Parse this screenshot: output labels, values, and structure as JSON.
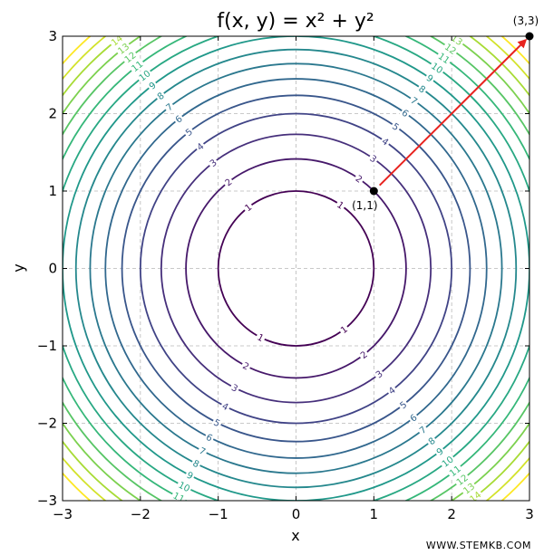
{
  "chart_data": {
    "type": "contour",
    "title": "f(x, y) = x² + y²",
    "xlabel": "x",
    "ylabel": "y",
    "xlim": [
      -3,
      3
    ],
    "ylim": [
      -3,
      3
    ],
    "x_ticks": [
      -3,
      -2,
      -1,
      0,
      1,
      2,
      3
    ],
    "y_ticks": [
      -3,
      -2,
      -1,
      0,
      1,
      2,
      3
    ],
    "x_tick_labels": [
      "−3",
      "−2",
      "−1",
      "0",
      "1",
      "2",
      "3"
    ],
    "y_tick_labels": [
      "−3",
      "−2",
      "−1",
      "0",
      "1",
      "2",
      "3"
    ],
    "grid": true,
    "levels": [
      1,
      2,
      3,
      4,
      5,
      6,
      7,
      8,
      9,
      10,
      11,
      12,
      13,
      14,
      15,
      16
    ],
    "colormap": "viridis",
    "points": [
      {
        "label": "(1,1)",
        "x": 1,
        "y": 1
      },
      {
        "label": "(3,3)",
        "x": 3,
        "y": 3
      }
    ],
    "arrow": {
      "from": [
        1,
        1
      ],
      "to": [
        3,
        3
      ],
      "color": "#e8231f"
    },
    "watermark": "WWW.STEMKB.COM"
  }
}
